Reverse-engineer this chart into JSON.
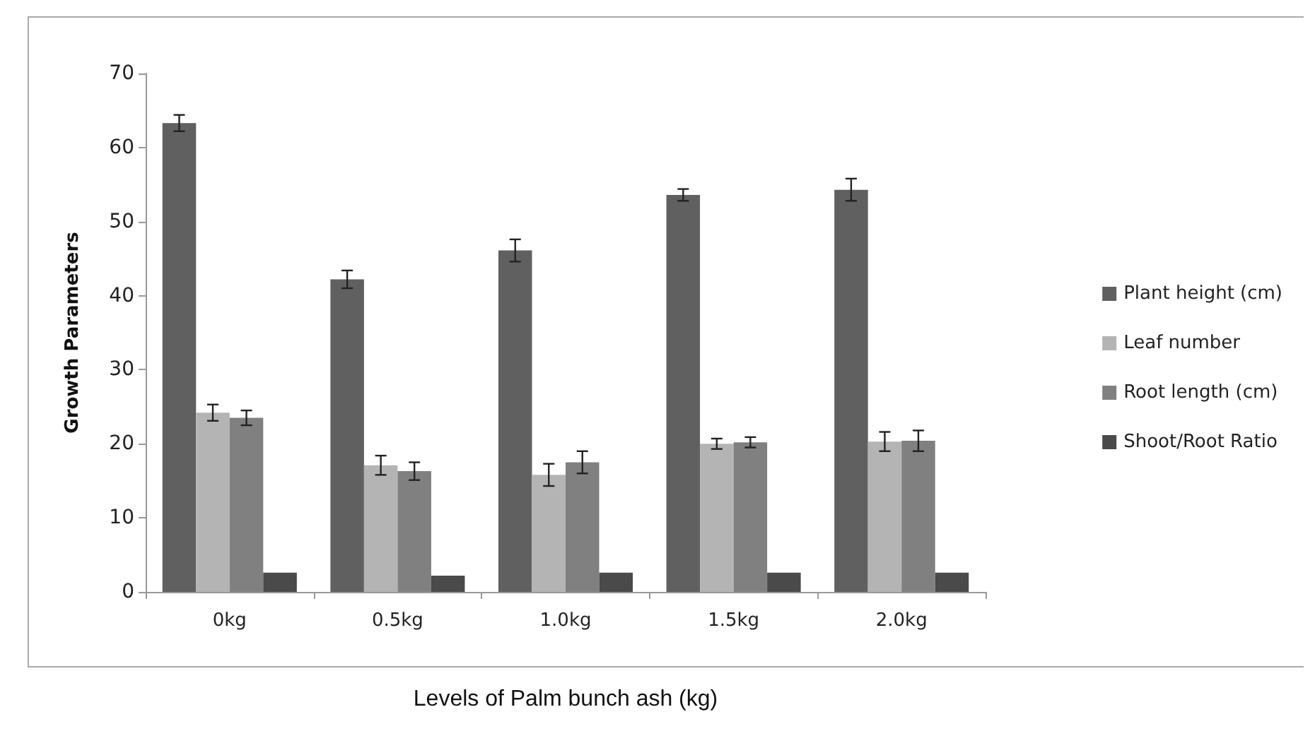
{
  "chart_data": {
    "type": "bar",
    "xlabel": "Levels of Palm bunch ash (kg)",
    "ylabel": "Growth Parameters",
    "categories": [
      "0kg",
      "0.5kg",
      "1.0kg",
      "1.5kg",
      "2.0kg"
    ],
    "series": [
      {
        "name": "Plant height (cm)",
        "color": "#606060",
        "values": [
          63.3,
          42.2,
          46.1,
          53.6,
          54.3
        ],
        "errors": [
          1.1,
          1.2,
          1.5,
          0.8,
          1.5
        ]
      },
      {
        "name": "Leaf number",
        "color": "#b4b4b4",
        "values": [
          24.2,
          17.1,
          15.8,
          20.0,
          20.3
        ],
        "errors": [
          1.1,
          1.3,
          1.5,
          0.7,
          1.3
        ]
      },
      {
        "name": "Root length (cm)",
        "color": "#808080",
        "values": [
          23.5,
          16.3,
          17.5,
          20.2,
          20.4
        ],
        "errors": [
          1.0,
          1.2,
          1.5,
          0.7,
          1.4
        ]
      },
      {
        "name": "Shoot/Root Ratio",
        "color": "#4a4a4a",
        "values": [
          2.6,
          2.2,
          2.6,
          2.6,
          2.6
        ],
        "errors": [
          null,
          null,
          null,
          null,
          null
        ]
      }
    ],
    "ylim": [
      0,
      70
    ],
    "yticks": [
      0,
      10,
      20,
      30,
      40,
      50,
      60,
      70
    ],
    "grid": false,
    "legend": "right"
  }
}
